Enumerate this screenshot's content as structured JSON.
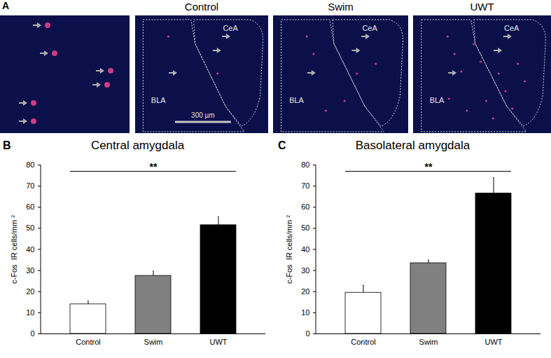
{
  "panel_a": {
    "panel": "A",
    "titles": [
      "Control",
      "Swim",
      "UWT"
    ],
    "regions": [
      "CeA",
      "BLA"
    ],
    "scale_bar": "300 µm"
  },
  "chart_data": [
    {
      "type": "bar",
      "panel": "B",
      "title": "Central  amygdala",
      "y_label": "c-Fos  IR cells/mm ²",
      "categories": [
        "Control",
        "Swim",
        "UWT"
      ],
      "values": [
        14,
        27.5,
        51.5
      ],
      "errors": [
        1.5,
        2.2,
        4
      ],
      "colors": [
        "#ffffff",
        "#808080",
        "#000000"
      ],
      "ylim": [
        0,
        80
      ],
      "yticks": [
        0,
        10,
        20,
        30,
        40,
        50,
        60,
        70,
        80
      ],
      "annotations": [
        {
          "text": "**",
          "from": "Control",
          "to": "UWT",
          "y": 77
        }
      ]
    },
    {
      "type": "bar",
      "panel": "C",
      "title": "Basolateral amygdala",
      "y_label": "c-Fos  IR cells/mm ²",
      "categories": [
        "Control",
        "Swim",
        "UWT"
      ],
      "values": [
        19.5,
        33.5,
        66.5
      ],
      "errors": [
        3.5,
        1.5,
        7.5
      ],
      "colors": [
        "#ffffff",
        "#808080",
        "#000000"
      ],
      "ylim": [
        0,
        80
      ],
      "yticks": [
        0,
        10,
        20,
        30,
        40,
        50,
        60,
        70,
        80
      ],
      "annotations": [
        {
          "text": "**",
          "from": "Control",
          "to": "UWT",
          "y": 77
        }
      ]
    }
  ]
}
